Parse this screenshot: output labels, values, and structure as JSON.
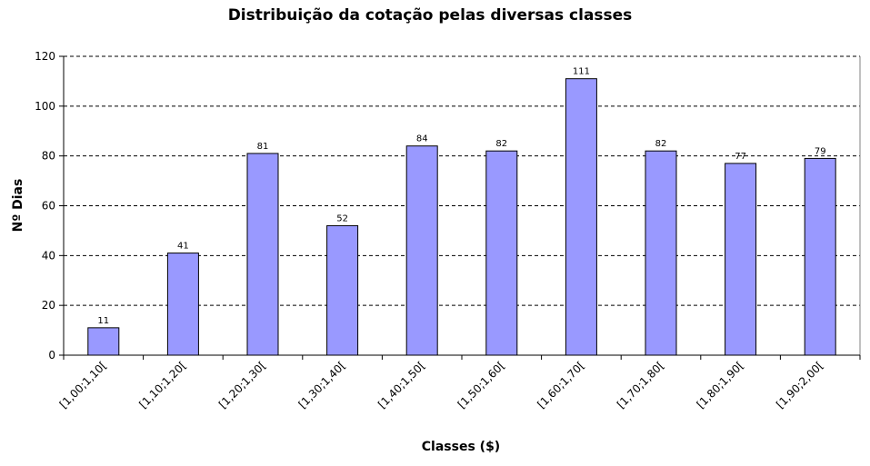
{
  "chart_data": {
    "type": "bar",
    "title": "Distribuição da cotação pelas diversas classes",
    "xlabel": "Classes ($)",
    "ylabel": "Nº Dias",
    "categories": [
      "[1,00;1,10[",
      "[1,10;1,20[",
      "[1,20;1,30[",
      "[1,30;1,40[",
      "[1,40;1,50[",
      "[1,50;1,60[",
      "[1,60;1,70[",
      "[1,70;1,80[",
      "[1,80;1,90[",
      "[1,90;2,00["
    ],
    "values": [
      11,
      41,
      81,
      52,
      84,
      82,
      111,
      82,
      77,
      79
    ],
    "ylim": [
      0,
      120
    ],
    "yticks": [
      0,
      20,
      40,
      60,
      80,
      100,
      120
    ],
    "grid": "horizontal dashed",
    "legend": "none",
    "bar_color": "#9999ff",
    "bar_border_color": "#000000",
    "gridline_color": "#000000"
  }
}
